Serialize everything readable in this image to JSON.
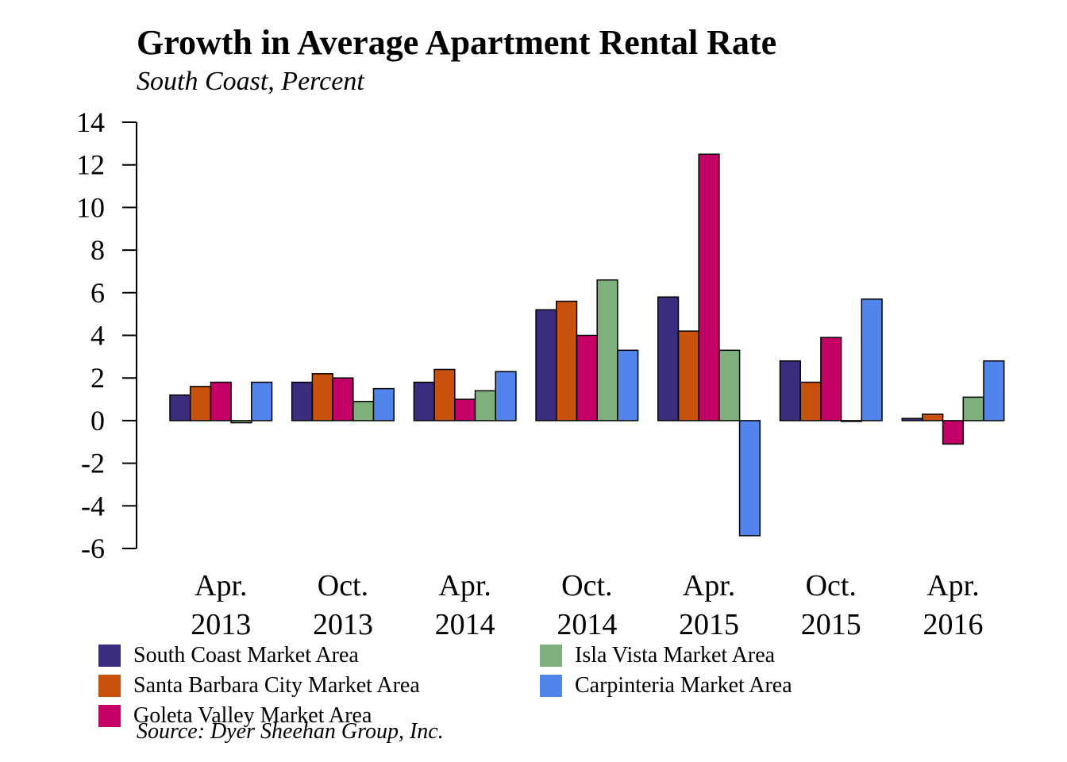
{
  "chart_data": {
    "type": "bar",
    "title": "Growth in Average Apartment Rental Rate",
    "subtitle": "South Coast, Percent",
    "categories": [
      [
        "Apr.",
        "2013"
      ],
      [
        "Oct.",
        "2013"
      ],
      [
        "Apr.",
        "2014"
      ],
      [
        "Oct.",
        "2014"
      ],
      [
        "Apr.",
        "2015"
      ],
      [
        "Oct.",
        "2015"
      ],
      [
        "Apr.",
        "2016"
      ]
    ],
    "series": [
      {
        "name": "South Coast Market Area",
        "color": "#3a2c7e",
        "values": [
          1.2,
          1.8,
          1.8,
          5.2,
          5.8,
          2.8,
          0.1
        ]
      },
      {
        "name": "Santa Barbara City Market Area",
        "color": "#c8520c",
        "values": [
          1.6,
          2.2,
          2.4,
          5.6,
          4.2,
          1.8,
          0.3
        ]
      },
      {
        "name": "Goleta Valley Market Area",
        "color": "#c20065",
        "values": [
          1.8,
          2.0,
          1.0,
          4.0,
          12.5,
          3.9,
          -1.1
        ]
      },
      {
        "name": "Isla Vista Market Area",
        "color": "#7db07a",
        "values": [
          -0.1,
          0.9,
          1.4,
          6.6,
          3.3,
          0.0,
          1.1
        ]
      },
      {
        "name": "Carpinteria Market Area",
        "color": "#5285ec",
        "values": [
          1.8,
          1.5,
          2.3,
          3.3,
          -5.4,
          5.7,
          2.8
        ]
      }
    ],
    "ylim": [
      -6,
      14
    ],
    "yticks": [
      14,
      12,
      10,
      8,
      6,
      4,
      2,
      0,
      -2,
      -4,
      -6
    ],
    "grid": false,
    "legend_position": "bottom",
    "source": "Source: Dyer Sheehan Group, Inc."
  }
}
